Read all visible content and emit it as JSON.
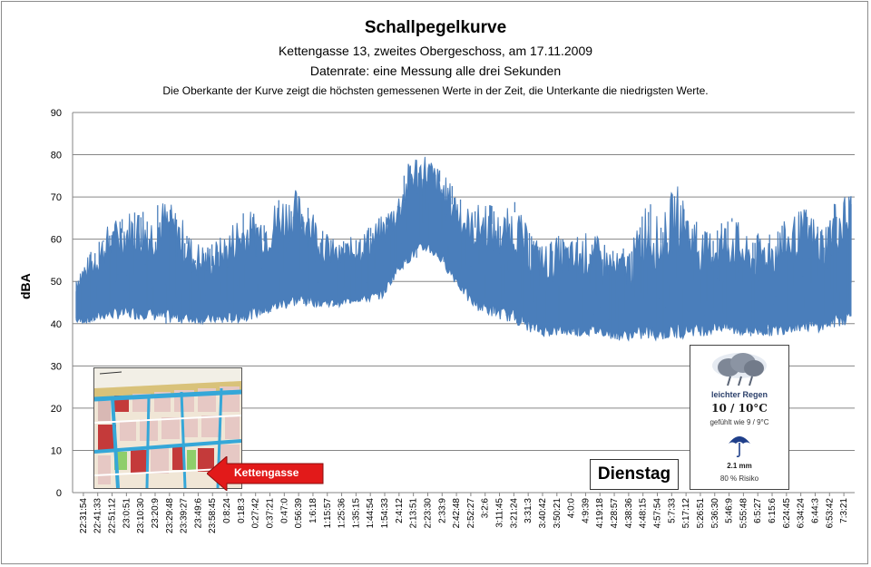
{
  "chart_data": {
    "type": "line",
    "title": "Schallpegelkurve",
    "subtitle_lines": [
      "Kettengasse 13, zweites Obergeschoss, am 17.11.2009",
      "Datenrate: eine Messung alle drei Sekunden",
      "Die Oberkante der Kurve zeigt die höchsten gemessenen Werte  in der Zeit, die Unterkante  die niedrigsten Werte."
    ],
    "ylabel": "dBA",
    "xlabel": "",
    "ylim": [
      0,
      90
    ],
    "yticks": [
      0,
      10,
      20,
      30,
      40,
      50,
      60,
      70,
      80,
      90
    ],
    "grid": true,
    "x_tick_labels": [
      "22:31:54",
      "22:41:33",
      "22:51:12",
      "23:0:51",
      "23:10:30",
      "23:20:9",
      "23:29:48",
      "23:39:27",
      "23:49:6",
      "23:58:45",
      "0:8:24",
      "0:18:3",
      "0:27:42",
      "0:37:21",
      "0:47:0",
      "0:56:39",
      "1:6:18",
      "1:15:57",
      "1:25:36",
      "1:35:15",
      "1:44:54",
      "1:54:33",
      "2:4:12",
      "2:13:51",
      "2:23:30",
      "2:33:9",
      "2:42:48",
      "2:52:27",
      "3:2:6",
      "3:11:45",
      "3:21:24",
      "3:31:3",
      "3:40:42",
      "3:50:21",
      "4:0:0",
      "4:9:39",
      "4:19:18",
      "4:28:57",
      "4:38:36",
      "4:48:15",
      "4:57:54",
      "5:7:33",
      "5:17:12",
      "5:26:51",
      "5:36:30",
      "5:46:9",
      "5:55:48",
      "6:5:27",
      "6:15:6",
      "6:24:45",
      "6:34:24",
      "6:44:3",
      "6:53:42",
      "7:3:21"
    ],
    "envelope": {
      "series_name": "",
      "upper": [
        53,
        57,
        63,
        66,
        68,
        66,
        70,
        67,
        60,
        59,
        61,
        66,
        67,
        67,
        71,
        72,
        69,
        62,
        59,
        61,
        63,
        66,
        71,
        81,
        81,
        76,
        72,
        67,
        70,
        66,
        69,
        62,
        59,
        61,
        60,
        62,
        60,
        57,
        59,
        70,
        64,
        74,
        67,
        62,
        64,
        66,
        60,
        62,
        63,
        66,
        68,
        63,
        70,
        72
      ],
      "lower": [
        40,
        40,
        41,
        41,
        41,
        41,
        40,
        40,
        40,
        40,
        40,
        40,
        41,
        42,
        43,
        44,
        44,
        44,
        44,
        45,
        45,
        46,
        52,
        55,
        57,
        54,
        49,
        44,
        42,
        41,
        40,
        38,
        37,
        37,
        37,
        37,
        37,
        36,
        36,
        36,
        36,
        36,
        37,
        37,
        38,
        37,
        37,
        37,
        37,
        38,
        38,
        38,
        39,
        40
      ]
    }
  },
  "annotations": {
    "map_label": "Kettengasse",
    "day_label": "Dienstag",
    "weather": {
      "condition": "leichter Regen",
      "temperature": "10 / 10°C",
      "feels_like": "gefühlt wie 9 / 9°C",
      "rain_amount": "2.1 mm",
      "rain_risk": "80 % Risiko"
    }
  },
  "colors": {
    "series": "#4a7ebb",
    "grid": "#868686",
    "arrow": "#e21a1a"
  }
}
